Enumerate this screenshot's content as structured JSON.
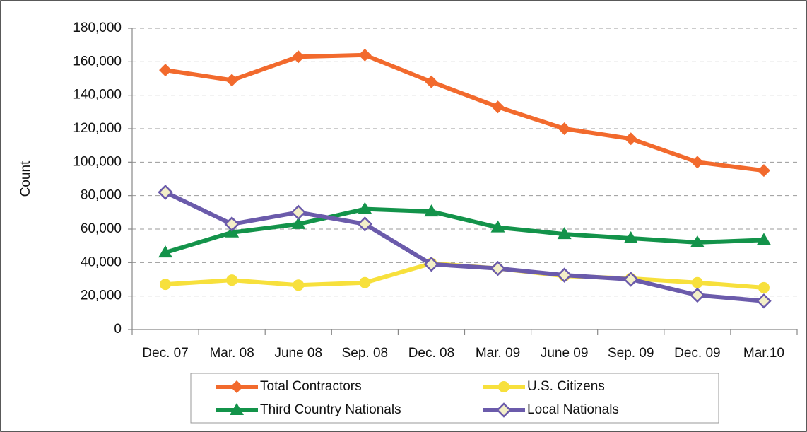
{
  "chart_data": {
    "type": "line",
    "ylabel": "Count",
    "categories": [
      "Dec. 07",
      "Mar. 08",
      "June 08",
      "Sep. 08",
      "Dec. 08",
      "Mar. 09",
      "June 09",
      "Sep. 09",
      "Dec. 09",
      "Mar.10"
    ],
    "series": [
      {
        "name": "Total Contractors",
        "color": "#f26a2d",
        "marker": "diamond",
        "values": [
          155000,
          149000,
          163000,
          164000,
          148000,
          133000,
          120000,
          114000,
          100000,
          95000
        ]
      },
      {
        "name": "U.S. Citizens",
        "color": "#f7e03c",
        "marker": "circle",
        "values": [
          27000,
          29500,
          26500,
          28000,
          39500,
          36500,
          32000,
          30500,
          28000,
          25000
        ]
      },
      {
        "name": "Third Country Nationals",
        "color": "#13934a",
        "marker": "triangle",
        "values": [
          46000,
          58000,
          63000,
          72000,
          70500,
          61000,
          57000,
          54500,
          52000,
          53500
        ]
      },
      {
        "name": "Local Nationals",
        "color": "#6b5bab",
        "marker": "hollow-diamond",
        "values": [
          82000,
          63000,
          70000,
          63000,
          39000,
          36500,
          32500,
          30000,
          20500,
          17000
        ]
      }
    ],
    "ylim": [
      0,
      180000
    ],
    "yticks": [
      0,
      {
        "value": 20000,
        "label": "20,000"
      },
      {
        "value": 40000,
        "label": "40,000"
      },
      {
        "value": 60000,
        "label": "60,000"
      },
      {
        "value": 80000,
        "label": "80,000"
      },
      {
        "value": 100000,
        "label": "100,000"
      },
      {
        "value": 120000,
        "label": "120,000"
      },
      {
        "value": 140000,
        "label": "140,000"
      },
      {
        "value": 160000,
        "label": "160,000"
      },
      {
        "value": 180000,
        "label": "180,000"
      }
    ],
    "grid": true,
    "legend": "bottom"
  }
}
